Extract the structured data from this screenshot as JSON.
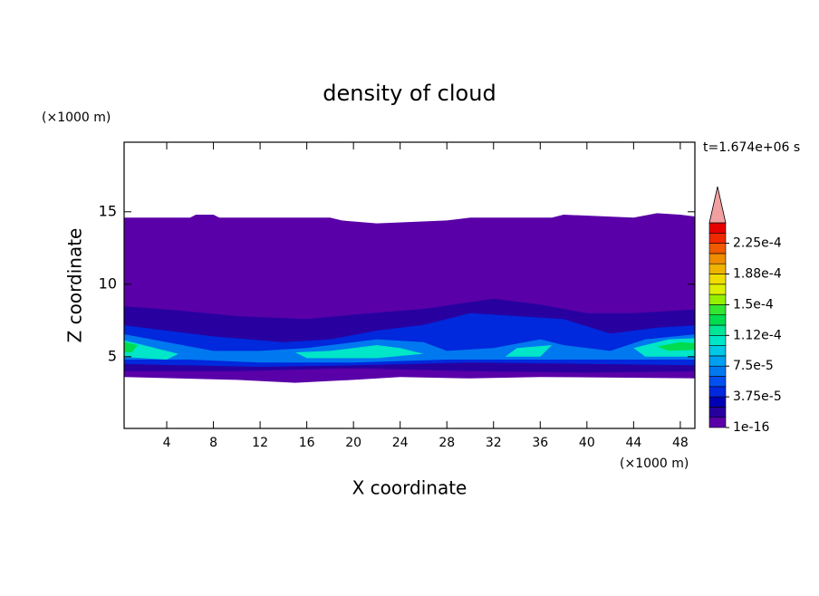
{
  "chart_data": {
    "type": "contour",
    "title": "density of cloud",
    "x_label": "X coordinate",
    "y_label": "Z coordinate",
    "x_unit": "(×1000 m)",
    "y_unit": "(×1000 m)",
    "time_label": "t=1.674e+06 s",
    "xlim": [
      0.35,
      49.25
    ],
    "ylim": [
      0.05,
      19.8
    ],
    "xticks": [
      4,
      8,
      12,
      16,
      20,
      24,
      28,
      32,
      36,
      40,
      44,
      48
    ],
    "yticks": [
      5,
      10,
      15
    ],
    "levels": [
      1e-16,
      1.25e-05,
      2.5e-05,
      3.75e-05,
      5e-05,
      6.25e-05,
      7.5e-05,
      8.75e-05,
      0.0001,
      0.0001125,
      0.000125,
      0.0001375,
      0.00015,
      0.0001625,
      0.000175,
      0.0001875,
      0.0002,
      0.0002125,
      0.000225,
      0.0002375
    ],
    "colors": [
      "#5a00a8",
      "#2800a0",
      "#0000b4",
      "#0028dc",
      "#0050f0",
      "#0078f0",
      "#00a0f0",
      "#00c8e6",
      "#00e6c8",
      "#00e696",
      "#00dc50",
      "#32e632",
      "#96f000",
      "#dcf000",
      "#f0dc00",
      "#f0b400",
      "#f08c00",
      "#f05a00",
      "#f02800",
      "#e60000"
    ],
    "over_color": "#f0a0a0",
    "colorbar_ticks": [
      {
        "value": 1e-16,
        "label": "1e-16"
      },
      {
        "value": 3.75e-05,
        "label": "3.75e-5"
      },
      {
        "value": 7.5e-05,
        "label": "7.5e-5"
      },
      {
        "value": 0.0001125,
        "label": "1.12e-4"
      },
      {
        "value": 0.00015,
        "label": "1.5e-4"
      },
      {
        "value": 0.0001875,
        "label": "1.88e-4"
      },
      {
        "value": 0.000225,
        "label": "2.25e-4"
      }
    ]
  }
}
